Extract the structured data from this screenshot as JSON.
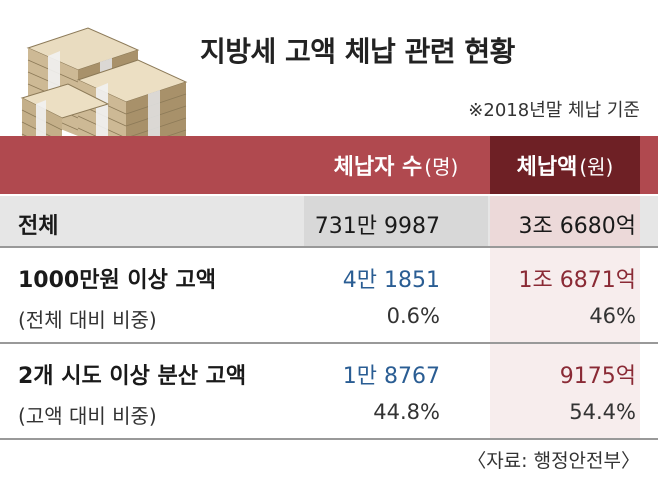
{
  "title": "지방세 고액 체납 관련 현황",
  "note": "※2018년말 체납 기준",
  "header": {
    "col1_label": "체납자 수",
    "col1_unit": "(명)",
    "col2_label": "체납액",
    "col2_unit": "(원)"
  },
  "rows": [
    {
      "label": "전체",
      "count": "731만 9987",
      "amount": "3조 6680억"
    },
    {
      "label": "1000만원 이상 고액",
      "count": "4만 1851",
      "amount": "1조 6871억",
      "sub_label": "(전체 대비 비중)",
      "count_pct": "0.6%",
      "amount_pct": "46%"
    },
    {
      "label": "2개 시도 이상 분산 고액",
      "count": "1만 8767",
      "amount": "9175억",
      "sub_label": "(고액 대비 비중)",
      "count_pct": "44.8%",
      "amount_pct": "54.4%"
    }
  ],
  "source": "〈자료: 행정안전부〉",
  "colors": {
    "header_red": "#b0494f",
    "header_dark_red": "#6e2025",
    "blue_value": "#2a5d93",
    "red_value": "#8a2a35"
  },
  "icons": [
    "money-stack-icon"
  ]
}
